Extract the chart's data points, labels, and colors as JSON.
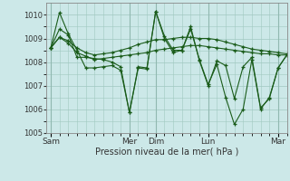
{
  "xlabel": "Pression niveau de la mer( hPa )",
  "bg_color": "#cce8e8",
  "grid_color": "#a0c8c0",
  "line_color": "#1a5c1a",
  "ylim": [
    1005,
    1010.5
  ],
  "yticks": [
    1005,
    1006,
    1007,
    1008,
    1009,
    1010
  ],
  "xtick_labels": [
    "Sam",
    "Mer",
    "Dim",
    "Lun",
    "Mar"
  ],
  "xtick_positions": [
    0,
    9,
    12,
    18,
    26
  ],
  "xlim": [
    -0.5,
    27
  ],
  "n_points": 28,
  "series": [
    [
      1008.6,
      1009.4,
      1009.15,
      1008.2,
      1008.2,
      1008.15,
      1008.1,
      1008.0,
      1007.8,
      1005.85,
      1007.8,
      1007.75,
      1010.15,
      1009.1,
      1008.5,
      1008.5,
      1009.5,
      1008.05,
      1007.0,
      1008.05,
      1007.85,
      1006.45,
      1007.8,
      1008.2,
      1006.05,
      1006.45,
      1007.75,
      1008.3
    ],
    [
      1008.6,
      1009.05,
      1008.8,
      1008.4,
      1008.25,
      1008.1,
      1008.15,
      1008.2,
      1008.25,
      1008.3,
      1008.35,
      1008.4,
      1008.5,
      1008.55,
      1008.6,
      1008.65,
      1008.7,
      1008.7,
      1008.65,
      1008.6,
      1008.55,
      1008.5,
      1008.45,
      1008.4,
      1008.35,
      1008.35,
      1008.3,
      1008.3
    ],
    [
      1008.6,
      1009.05,
      1008.9,
      1008.6,
      1008.4,
      1008.3,
      1008.35,
      1008.4,
      1008.5,
      1008.6,
      1008.75,
      1008.85,
      1008.95,
      1008.95,
      1009.0,
      1009.05,
      1009.05,
      1009.0,
      1009.0,
      1008.95,
      1008.85,
      1008.75,
      1008.65,
      1008.55,
      1008.5,
      1008.45,
      1008.4,
      1008.35
    ],
    [
      1008.6,
      1010.1,
      1009.2,
      1008.5,
      1007.75,
      1007.75,
      1007.8,
      1007.85,
      1007.65,
      1005.85,
      1007.75,
      1007.7,
      1010.15,
      1009.0,
      1008.4,
      1008.5,
      1009.4,
      1008.1,
      1007.05,
      1007.9,
      1006.5,
      1005.35,
      1006.0,
      1008.1,
      1006.0,
      1006.5,
      1007.75,
      1008.3
    ]
  ]
}
